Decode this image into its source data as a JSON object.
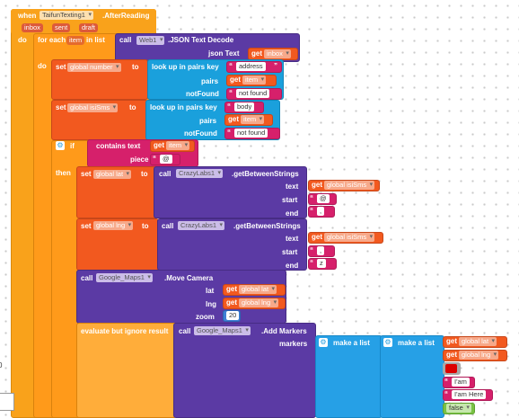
{
  "event": {
    "when": "when",
    "component": "TaifunTexting1",
    "event_name": ".AfterReading",
    "params": [
      "inbox",
      "sent",
      "draft"
    ],
    "do": "do"
  },
  "foreach": {
    "label": "for each",
    "item": "item",
    "in_list": "in list",
    "do": "do"
  },
  "web_decode": {
    "call": "call",
    "component": "Web1",
    "method": ".JSON Text Decode",
    "param": "json Text",
    "get": "get",
    "arg": "inbox"
  },
  "set1": {
    "set": "set",
    "var": "global number",
    "to": "to",
    "lookup": "look up in pairs  key",
    "key": "address",
    "pairs": "pairs",
    "get": "get",
    "pairs_arg": "item",
    "notfound": "notFound",
    "notfound_value": "not found"
  },
  "set2": {
    "set": "set",
    "var": "global isiSms",
    "to": "to",
    "lookup": "look up in pairs  key",
    "key": "body",
    "pairs": "pairs",
    "get": "get",
    "pairs_arg": "item",
    "notfound": "notFound",
    "notfound_value": "not found"
  },
  "if_block": {
    "if": "if",
    "contains": "contains  text",
    "get": "get",
    "text_arg": "item",
    "piece": "piece",
    "piece_value": "@",
    "then": "then"
  },
  "set_lat": {
    "set": "set",
    "var": "global lat",
    "to": "to",
    "call": "call",
    "component": "CrazyLabs1",
    "method": ".getBetweenStrings",
    "text": "text",
    "get": "get",
    "text_arg": "global isiSms",
    "start": "start",
    "start_value": "@",
    "end": "end",
    "end_value": ","
  },
  "set_lng": {
    "set": "set",
    "var": "global lng",
    "to": "to",
    "call": "call",
    "component": "CrazyLabs1",
    "method": ".getBetweenStrings",
    "text": "text",
    "get": "get",
    "text_arg": "global isiSms",
    "start": "start",
    "start_value": ",",
    "end": "end",
    "end_value": "z"
  },
  "move_camera": {
    "call": "call",
    "component": "Google_Maps1",
    "method": ".Move Camera",
    "lat": "lat",
    "lng": "lng",
    "zoom": "zoom",
    "get": "get",
    "lat_arg": "global lat",
    "lng_arg": "global lng",
    "zoom_value": "20"
  },
  "add_markers": {
    "evaluate": "evaluate but ignore result",
    "call": "call",
    "component": "Google_Maps1",
    "method": ".Add Markers",
    "markers": "markers",
    "make_list": "make a list",
    "make_list2": "make a list",
    "get": "get",
    "item1": "global lat",
    "item2": "global lng",
    "item4": "I'am",
    "item5": "I'am Here",
    "item6": "false"
  },
  "colors": {
    "event": "#f9a21b",
    "control": "#ff9a1a",
    "variable": "#f2591f",
    "component": "#5b3aa4",
    "dictionary": "#1aa0dc",
    "text": "#d6206b",
    "list": "#26a0e6",
    "logic": "#79c244",
    "color_swatch": "#dd0000"
  }
}
